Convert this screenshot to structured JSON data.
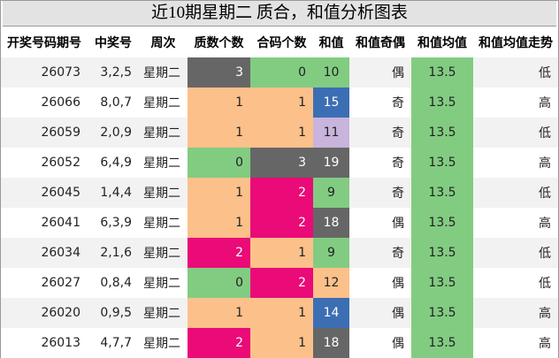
{
  "title": "近10期星期二 质合，和值分析图表",
  "headers": [
    "开奖号码期号",
    "中奖号",
    "周次",
    "质数个数",
    "合码个数",
    "和值",
    "和值奇偶",
    "和值均值",
    "和值均值走势"
  ],
  "colors": {
    "green": "#82cc82",
    "peach": "#fcc08a",
    "gray": "#666666",
    "magenta": "#ea0a78",
    "blue": "#3c6eb4",
    "lavender": "#c8b4dc",
    "yellow": "#f0e040",
    "header_bg": "#e3e3e3"
  },
  "rows": [
    {
      "issue": "26073",
      "number": "3,2,5",
      "week": "星期二",
      "prime": "3",
      "composite": "0",
      "sum": "10",
      "parity": "偶",
      "avg": "13.5",
      "trend": "低",
      "prime_color": "gray",
      "composite_color": "green",
      "sum_color": "green"
    },
    {
      "issue": "26066",
      "number": "8,0,7",
      "week": "星期二",
      "prime": "1",
      "composite": "1",
      "sum": "15",
      "parity": "奇",
      "avg": "13.5",
      "trend": "高",
      "prime_color": "peach",
      "composite_color": "peach",
      "sum_color": "blue"
    },
    {
      "issue": "26059",
      "number": "2,0,9",
      "week": "星期二",
      "prime": "1",
      "composite": "1",
      "sum": "11",
      "parity": "奇",
      "avg": "13.5",
      "trend": "低",
      "prime_color": "peach",
      "composite_color": "peach",
      "sum_color": "lavender"
    },
    {
      "issue": "26052",
      "number": "6,4,9",
      "week": "星期二",
      "prime": "0",
      "composite": "3",
      "sum": "19",
      "parity": "奇",
      "avg": "13.5",
      "trend": "高",
      "prime_color": "green",
      "composite_color": "gray",
      "sum_color": "gray"
    },
    {
      "issue": "26045",
      "number": "1,4,4",
      "week": "星期二",
      "prime": "1",
      "composite": "2",
      "sum": "9",
      "parity": "奇",
      "avg": "13.5",
      "trend": "低",
      "prime_color": "peach",
      "composite_color": "magenta",
      "sum_color": "green"
    },
    {
      "issue": "26041",
      "number": "6,3,9",
      "week": "星期二",
      "prime": "1",
      "composite": "2",
      "sum": "18",
      "parity": "偶",
      "avg": "13.5",
      "trend": "高",
      "prime_color": "peach",
      "composite_color": "magenta",
      "sum_color": "gray"
    },
    {
      "issue": "26034",
      "number": "2,1,6",
      "week": "星期二",
      "prime": "2",
      "composite": "1",
      "sum": "9",
      "parity": "奇",
      "avg": "13.5",
      "trend": "低",
      "prime_color": "magenta",
      "composite_color": "peach",
      "sum_color": "green"
    },
    {
      "issue": "26027",
      "number": "0,8,4",
      "week": "星期二",
      "prime": "0",
      "composite": "2",
      "sum": "12",
      "parity": "偶",
      "avg": "13.5",
      "trend": "低",
      "prime_color": "green",
      "composite_color": "magenta",
      "sum_color": "peach"
    },
    {
      "issue": "26020",
      "number": "0,9,5",
      "week": "星期二",
      "prime": "1",
      "composite": "1",
      "sum": "14",
      "parity": "偶",
      "avg": "13.5",
      "trend": "高",
      "prime_color": "peach",
      "composite_color": "peach",
      "sum_color": "blue"
    },
    {
      "issue": "26013",
      "number": "4,7,7",
      "week": "星期二",
      "prime": "2",
      "composite": "1",
      "sum": "18",
      "parity": "偶",
      "avg": "13.5",
      "trend": "高",
      "prime_color": "magenta",
      "composite_color": "peach",
      "sum_color": "gray"
    }
  ]
}
